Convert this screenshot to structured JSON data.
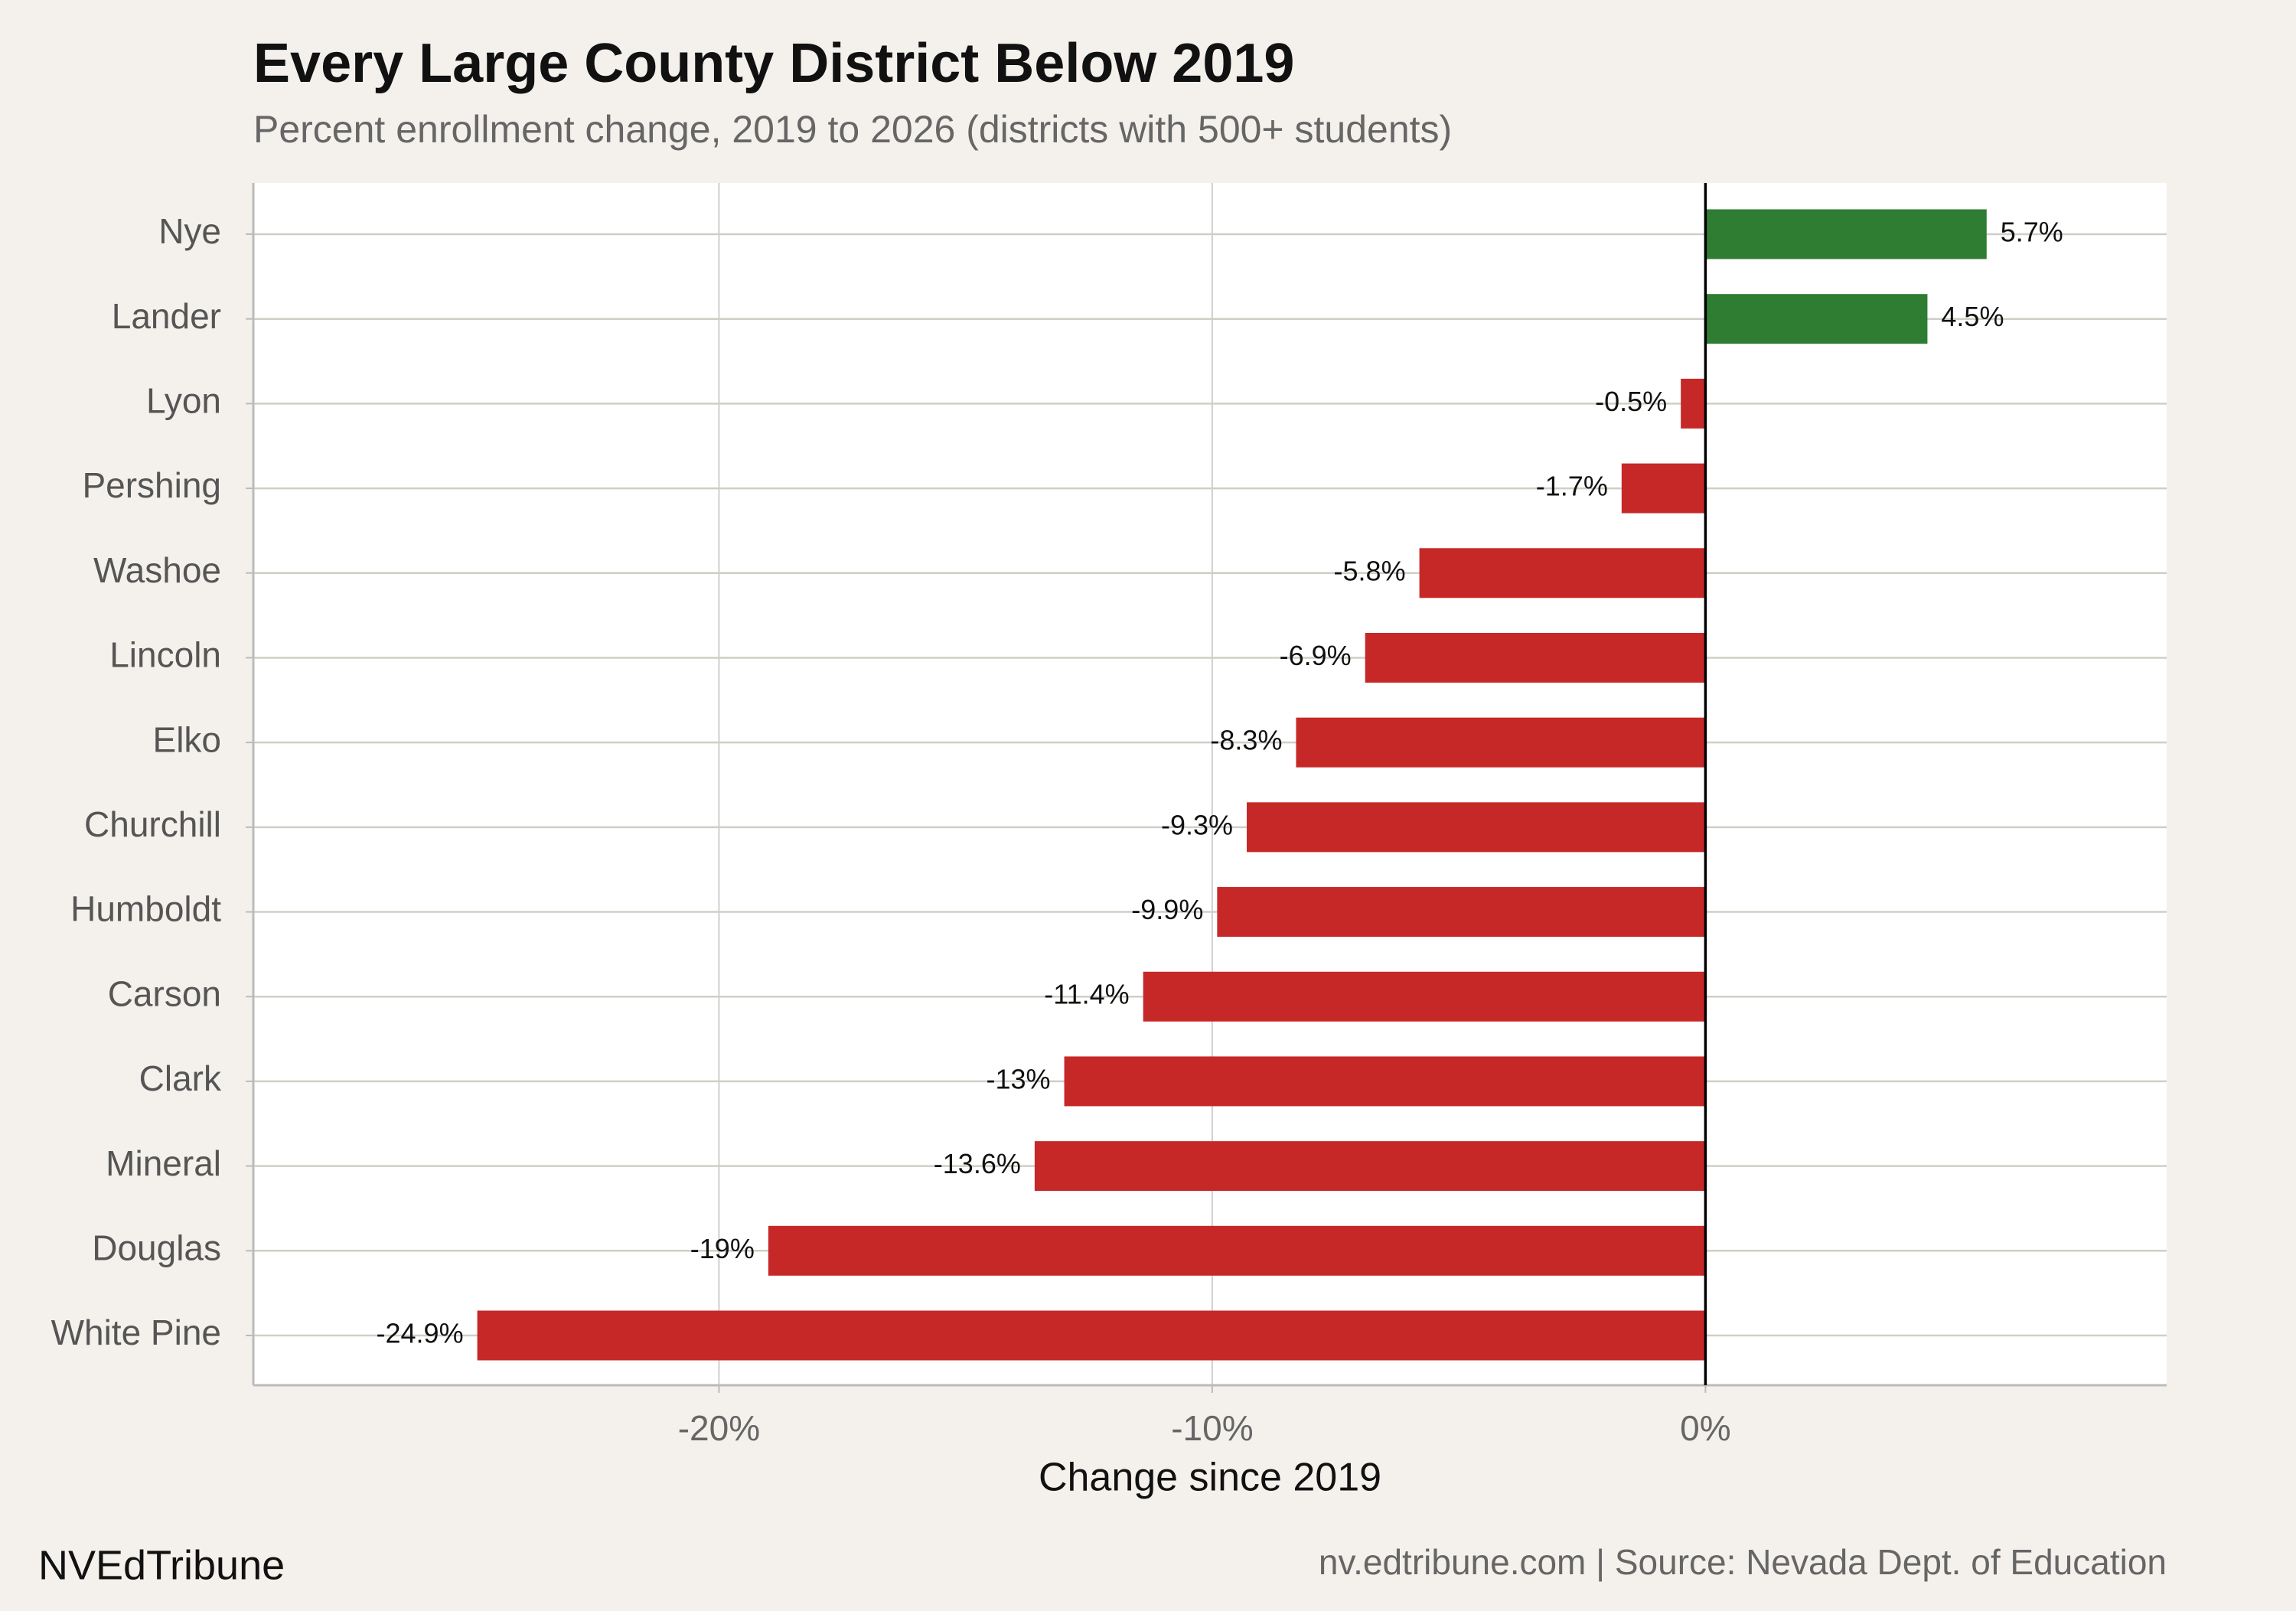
{
  "chart_data": {
    "type": "barh",
    "title": "Every Large County District Below 2019",
    "subtitle": "Percent enrollment change, 2019 to 2026 (districts with 500+ students)",
    "xlabel": "Change since 2019",
    "categories": [
      "Nye",
      "Lander",
      "Lyon",
      "Pershing",
      "Washoe",
      "Lincoln",
      "Elko",
      "Churchill",
      "Humboldt",
      "Carson",
      "Clark",
      "Mineral",
      "Douglas",
      "White Pine"
    ],
    "values": [
      5.7,
      4.5,
      -0.5,
      -1.7,
      -5.8,
      -6.9,
      -8.3,
      -9.3,
      -9.9,
      -11.4,
      -13,
      -13.6,
      -19,
      -24.9
    ],
    "value_labels": [
      "5.7%",
      "4.5%",
      "-0.5%",
      "-1.7%",
      "-5.8%",
      "-6.9%",
      "-8.3%",
      "-9.3%",
      "-9.9%",
      "-11.4%",
      "-13%",
      "-13.6%",
      "-19%",
      "-24.9%"
    ],
    "positive_color": "#2e7d32",
    "negative_color": "#c62828",
    "xlim": [
      -29.44,
      9.35
    ],
    "xticks": [
      {
        "value": -20,
        "label": "-20%"
      },
      {
        "value": -10,
        "label": "-10%"
      },
      {
        "value": 0,
        "label": "0%"
      }
    ],
    "grid": true,
    "brand": "NVEdTribune",
    "source": "nv.edtribune.com | Source: Nevada Dept. of Education"
  }
}
